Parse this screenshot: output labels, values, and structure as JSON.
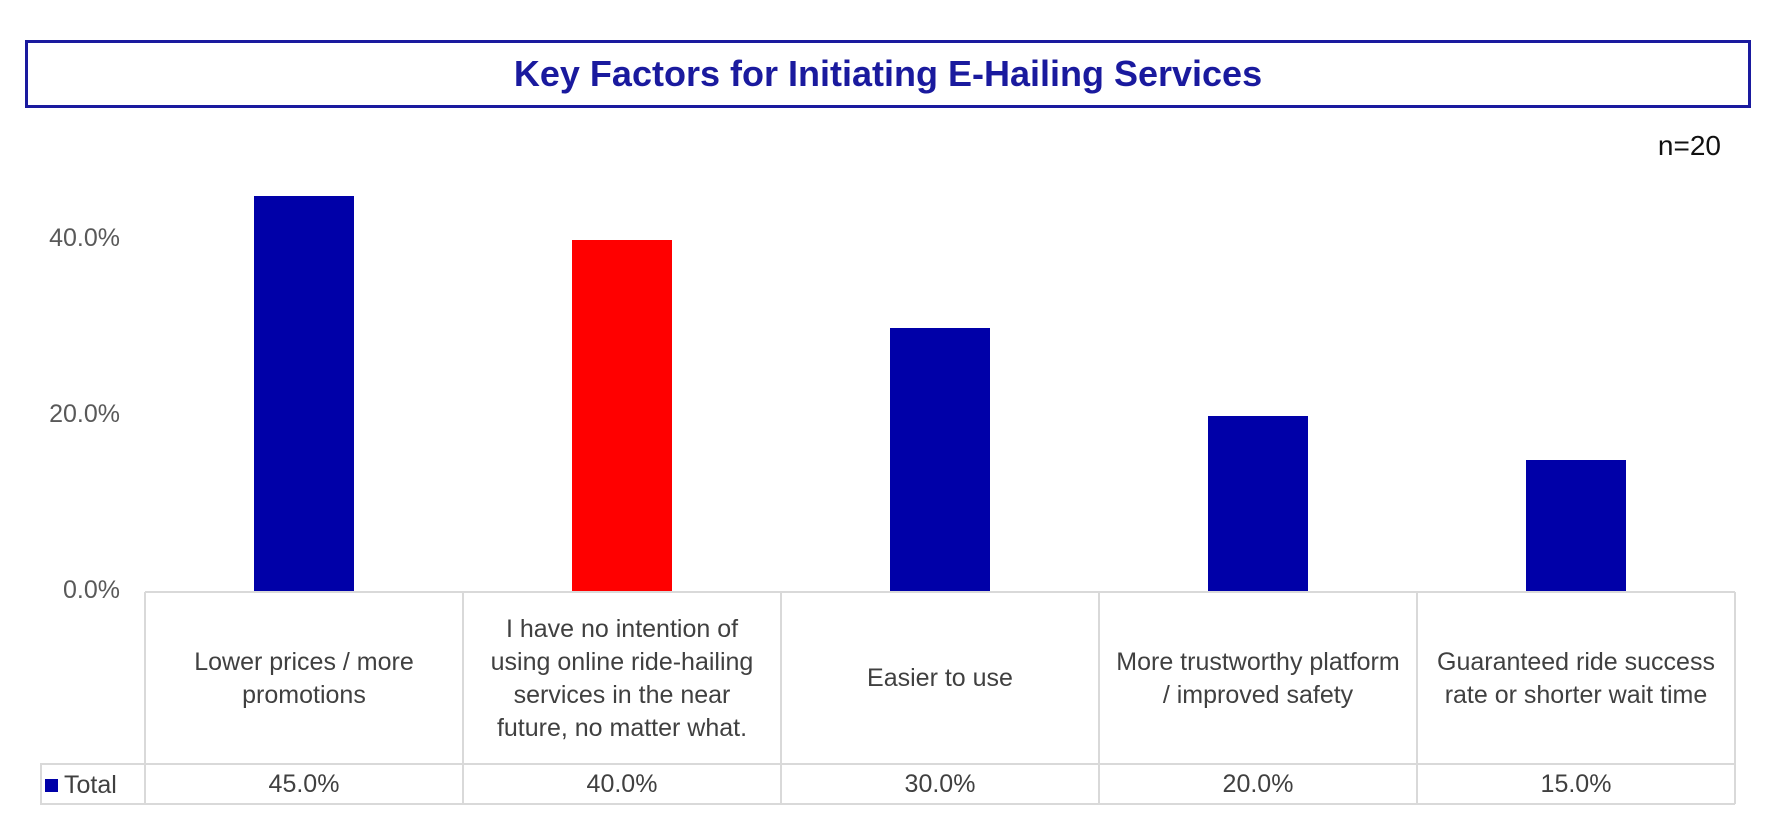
{
  "chart_data": {
    "type": "bar",
    "title": "Key Factors for Initiating E-Hailing Services",
    "sample_note": "n=20",
    "categories": [
      "Lower prices / more promotions",
      "I have no intention of using online ride-hailing services in the near future, no matter what.",
      "Easier to use",
      "More trustworthy platform / improved safety",
      "Guaranteed ride success rate or shorter wait time"
    ],
    "series": [
      {
        "name": "Total",
        "values": [
          45.0,
          40.0,
          30.0,
          20.0,
          15.0
        ],
        "value_labels": [
          "45.0%",
          "40.0%",
          "30.0%",
          "20.0%",
          "15.0%"
        ],
        "color": "#0000a8"
      }
    ],
    "highlight": {
      "index": 1,
      "color": "#ff0000"
    },
    "yticks": [
      "0.0%",
      "20.0%",
      "40.0%"
    ],
    "ylim": [
      0,
      50
    ],
    "data_table": true,
    "grid": false
  }
}
